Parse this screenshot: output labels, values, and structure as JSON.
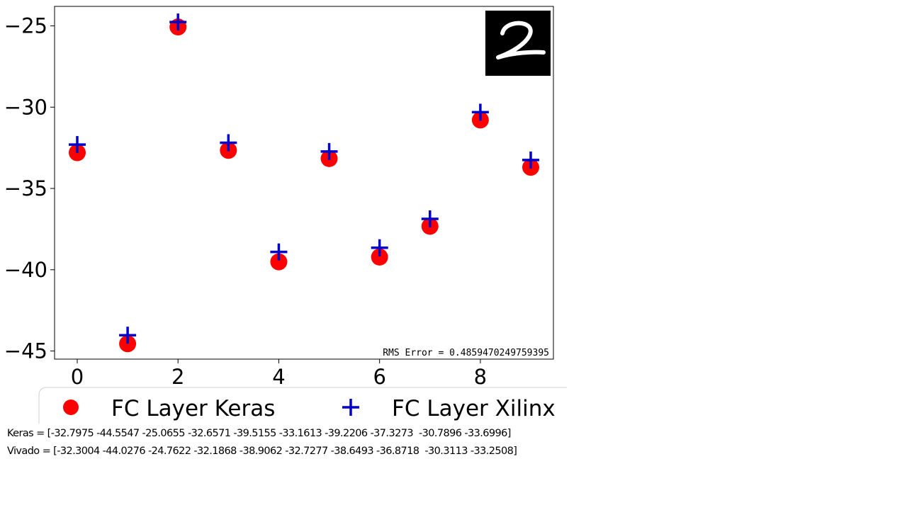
{
  "chart_data": {
    "type": "scatter",
    "x": [
      0,
      1,
      2,
      3,
      4,
      5,
      6,
      7,
      8,
      9
    ],
    "series": [
      {
        "name": "FC Layer Keras",
        "marker": "circle",
        "color": "#ff0000",
        "values": [
          -32.7975,
          -44.5547,
          -25.0655,
          -32.6571,
          -39.5155,
          -33.1613,
          -39.2206,
          -37.3273,
          -30.7896,
          -33.6996
        ]
      },
      {
        "name": "FC Layer Xilinx",
        "marker": "plus",
        "color": "#0000cc",
        "values": [
          -32.3004,
          -44.0276,
          -24.7622,
          -32.1868,
          -38.9062,
          -32.7277,
          -38.6493,
          -36.8718,
          -30.3113,
          -33.2508
        ]
      }
    ],
    "xticks": [
      0,
      2,
      4,
      6,
      8
    ],
    "xtick_labels": [
      "0",
      "2",
      "4",
      "6",
      "8"
    ],
    "yticks": [
      -25,
      -30,
      -35,
      -40,
      -45
    ],
    "ytick_labels": [
      "−25",
      "−30",
      "−35",
      "−40",
      "−45"
    ],
    "xlim": [
      -0.45,
      9.45
    ],
    "ylim": [
      -45.5,
      -23.8
    ],
    "annotation": "RMS Error = 0.4859470249759395",
    "inset": "handwritten digit 2 on black background",
    "legend_position": "below"
  },
  "captions": {
    "keras": "Keras = [-32.7975 -44.5547 -25.0655 -32.6571 -39.5155 -33.1613 -39.2206 -37.3273  -30.7896 -33.6996]",
    "vivado": "Vivado = [-32.3004 -44.0276 -24.7622 -32.1868 -38.9062 -32.7277 -38.6493 -36.8718  -30.3113 -33.2508]"
  }
}
